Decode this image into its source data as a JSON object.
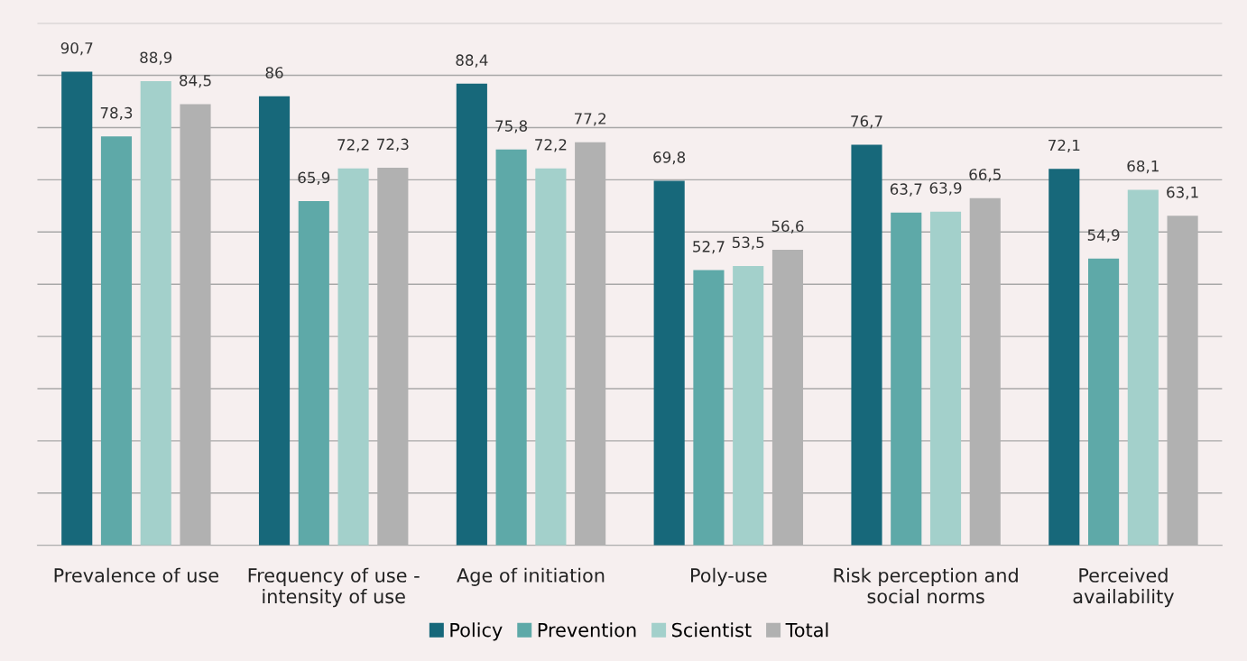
{
  "chart_data": {
    "type": "bar",
    "categories": [
      "Prevalence of use",
      "Frequency of use -\nintensity of use",
      "Age of initiation",
      "Poly-use",
      "Risk perception and\nsocial norms",
      "Perceived\navailability"
    ],
    "series": [
      {
        "name": "Policy",
        "color": "#17687a",
        "values": [
          90.7,
          86,
          88.4,
          69.8,
          76.7,
          72.1
        ],
        "value_labels": [
          "90,7",
          "86",
          "88,4",
          "69,8",
          "76,7",
          "72,1"
        ]
      },
      {
        "name": "Prevention",
        "color": "#5ea9a8",
        "values": [
          78.3,
          65.9,
          75.8,
          52.7,
          63.7,
          54.9
        ],
        "value_labels": [
          "78,3",
          "65,9",
          "75,8",
          "52,7",
          "63,7",
          "54,9"
        ]
      },
      {
        "name": "Scientist",
        "color": "#a3d0cb",
        "values": [
          88.9,
          72.2,
          72.2,
          53.5,
          63.9,
          68.1
        ],
        "value_labels": [
          "88,9",
          "72,2",
          "72,2",
          "53,5",
          "63,9",
          "68,1"
        ]
      },
      {
        "name": "Total",
        "color": "#b1b1b1",
        "values": [
          84.5,
          72.3,
          77.2,
          56.6,
          66.5,
          63.1
        ],
        "value_labels": [
          "84,5",
          "72,3",
          "77,2",
          "56,6",
          "66,5",
          "63,1"
        ]
      }
    ],
    "ylim": [
      0,
      100
    ],
    "yticks": [
      {
        "value": 0,
        "label": null
      },
      {
        "value": 10,
        "label": null
      },
      {
        "value": 20,
        "label": null
      },
      {
        "value": 30,
        "label": null
      },
      {
        "value": 40,
        "label": null
      },
      {
        "value": 50,
        "label": null
      },
      {
        "value": 60,
        "label": null
      },
      {
        "value": 70,
        "label": null
      },
      {
        "value": 80,
        "label": null
      },
      {
        "value": 90,
        "label": null
      },
      {
        "value": 100,
        "label": null
      }
    ],
    "tick_labels": "x",
    "grid": "y",
    "legend": "bottom"
  }
}
